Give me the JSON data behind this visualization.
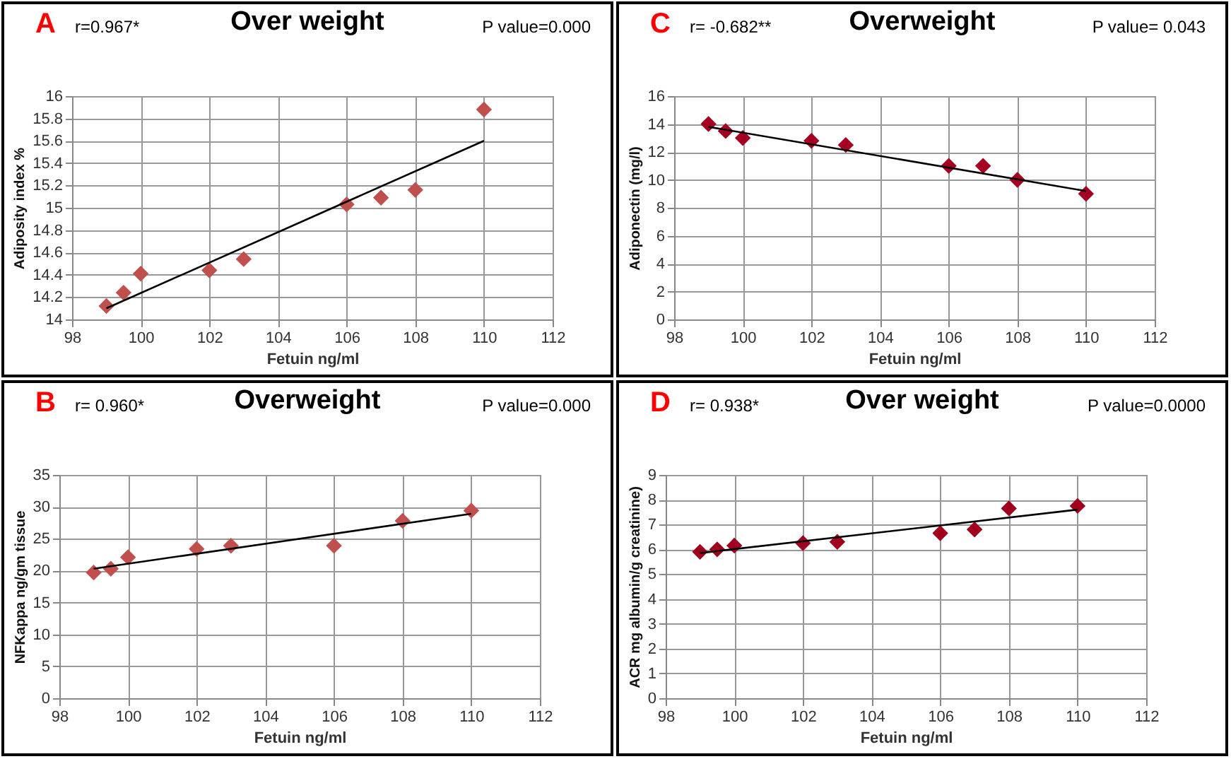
{
  "chart_data": [
    {
      "type": "scatter",
      "title": "Over weight",
      "annotations": [
        "A",
        "r=0.967*",
        "P value=0.000"
      ],
      "xlabel": "Fetuin ng/ml",
      "ylabel": "Adiposity index %",
      "xlim": [
        98,
        112
      ],
      "xticks": [
        98,
        100,
        102,
        104,
        106,
        108,
        110,
        112
      ],
      "ylim": [
        14,
        16
      ],
      "yticks": [
        14,
        14.2,
        14.4,
        14.6,
        14.8,
        15,
        15.2,
        15.4,
        15.6,
        15.8,
        16
      ],
      "grid": true,
      "marker": "diamond",
      "series": [
        {
          "type": "scatter",
          "color": "#c0504d",
          "x": [
            99,
            99.5,
            100,
            102,
            103,
            106,
            107,
            108,
            110
          ],
          "values": [
            14.12,
            14.24,
            14.41,
            14.44,
            14.54,
            15.03,
            15.09,
            15.16,
            15.88
          ]
        },
        {
          "type": "line",
          "marker": "none",
          "color": "#000000",
          "x": [
            99,
            110
          ],
          "values": [
            14.1,
            15.6
          ]
        }
      ]
    },
    {
      "type": "scatter",
      "title": "Overweight",
      "annotations": [
        "C",
        "r= -0.682**",
        "P value= 0.043"
      ],
      "xlabel": "Fetuin ng/ml",
      "ylabel": "Adiponectin (mg/l)",
      "xlim": [
        98,
        112
      ],
      "xticks": [
        98,
        100,
        102,
        104,
        106,
        108,
        110,
        112
      ],
      "ylim": [
        0,
        16
      ],
      "yticks": [
        0,
        2,
        4,
        6,
        8,
        10,
        12,
        14,
        16
      ],
      "grid": true,
      "marker": "diamond",
      "series": [
        {
          "type": "scatter",
          "color": "#a50021",
          "x": [
            99,
            99.5,
            100,
            102,
            103,
            106,
            107,
            108,
            110
          ],
          "values": [
            14,
            13.5,
            13,
            12.8,
            12.5,
            11,
            11,
            10,
            9
          ]
        },
        {
          "type": "line",
          "marker": "none",
          "color": "#000000",
          "x": [
            99,
            110
          ],
          "values": [
            13.8,
            9.2
          ]
        }
      ]
    },
    {
      "type": "scatter",
      "title": "Overweight",
      "annotations": [
        "B",
        "r= 0.960*",
        "P value=0.000"
      ],
      "xlabel": "Fetuin ng/ml",
      "ylabel": "NFKappa ng/gm tissue",
      "xlim": [
        98,
        112
      ],
      "xticks": [
        98,
        100,
        102,
        104,
        106,
        108,
        110,
        112
      ],
      "ylim": [
        0,
        35
      ],
      "yticks": [
        0,
        5,
        10,
        15,
        20,
        25,
        30,
        35
      ],
      "grid": true,
      "marker": "diamond",
      "series": [
        {
          "type": "scatter",
          "color": "#c0504d",
          "x": [
            99,
            99.5,
            100,
            102,
            103,
            106,
            108,
            110
          ],
          "values": [
            19.7,
            20.3,
            22.1,
            23.4,
            23.9,
            23.9,
            27.8,
            29.4
          ]
        },
        {
          "type": "line",
          "marker": "none",
          "color": "#000000",
          "x": [
            99,
            110
          ],
          "values": [
            20.3,
            28.9
          ]
        }
      ]
    },
    {
      "type": "scatter",
      "title": "Over weight",
      "annotations": [
        "D",
        "r= 0.938*",
        "P value=0.0000"
      ],
      "xlabel": "Fetuin ng/ml",
      "ylabel": "ACR mg albumin/g creatinine)",
      "xlim": [
        98,
        112
      ],
      "xticks": [
        98,
        100,
        102,
        104,
        106,
        108,
        110,
        112
      ],
      "ylim": [
        0,
        9
      ],
      "yticks": [
        0,
        1,
        2,
        3,
        4,
        5,
        6,
        7,
        8,
        9
      ],
      "grid": true,
      "marker": "diamond",
      "series": [
        {
          "type": "scatter",
          "color": "#a0001e",
          "x": [
            99,
            99.5,
            100,
            102,
            103,
            106,
            107,
            108,
            110
          ],
          "values": [
            5.9,
            6.0,
            6.15,
            6.25,
            6.3,
            6.65,
            6.8,
            7.65,
            7.75
          ]
        },
        {
          "type": "line",
          "marker": "none",
          "color": "#000000",
          "x": [
            99,
            110
          ],
          "values": [
            5.85,
            7.6
          ]
        }
      ]
    }
  ]
}
